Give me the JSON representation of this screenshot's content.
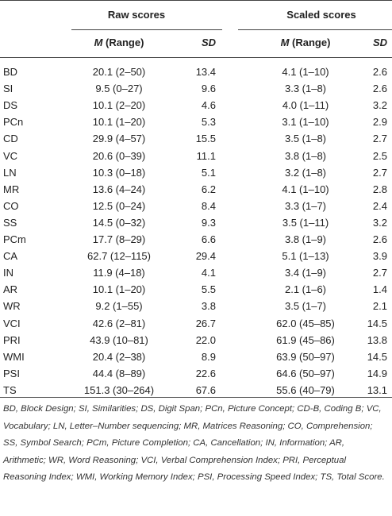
{
  "table": {
    "groups": [
      "Raw scores",
      "Scaled scores"
    ],
    "subheaders": [
      {
        "italic": "M",
        "text": " (Range)"
      },
      {
        "italic": "SD"
      },
      {
        "italic": "M",
        "text": " (Range)"
      },
      {
        "italic": "SD"
      }
    ],
    "rows": [
      [
        "BD",
        "20.1 (2–50)",
        "13.4",
        "4.1 (1–10)",
        "2.6"
      ],
      [
        "SI",
        "9.5 (0–27)",
        "9.6",
        "3.3 (1–8)",
        "2.6"
      ],
      [
        "DS",
        "10.1 (2–20)",
        "4.6",
        "4.0 (1–11)",
        "3.2"
      ],
      [
        "PCn",
        "10.1 (1–20)",
        "5.3",
        "3.1 (1–10)",
        "2.9"
      ],
      [
        "CD",
        "29.9 (4–57)",
        "15.5",
        "3.5 (1–8)",
        "2.7"
      ],
      [
        "VC",
        "20.6 (0–39)",
        "11.1",
        "3.8 (1–8)",
        "2.5"
      ],
      [
        "LN",
        "10.3 (0–18)",
        "5.1",
        "3.2 (1–8)",
        "2.7"
      ],
      [
        "MR",
        "13.6 (4–24)",
        "6.2",
        "4.1 (1–10)",
        "2.8"
      ],
      [
        "CO",
        "12.5 (0–24)",
        "8.4",
        "3.3 (1–7)",
        "2.4"
      ],
      [
        "SS",
        "14.5 (0–32)",
        "9.3",
        "3.5 (1–11)",
        "3.2"
      ],
      [
        "PCm",
        "17.7 (8–29)",
        "6.6",
        "3.8 (1–9)",
        "2.6"
      ],
      [
        "CA",
        "62.7 (12–115)",
        "29.4",
        "5.1 (1–13)",
        "3.9"
      ],
      [
        "IN",
        "11.9 (4–18)",
        "4.1",
        "3.4 (1–9)",
        "2.7"
      ],
      [
        "AR",
        "10.1 (1–20)",
        "5.5",
        "2.1 (1–6)",
        "1.4"
      ],
      [
        "WR",
        "9.2 (1–55)",
        "3.8",
        "3.5 (1–7)",
        "2.1"
      ],
      [
        "VCI",
        "42.6 (2–81)",
        "26.7",
        "62.0 (45–85)",
        "14.5"
      ],
      [
        "PRI",
        "43.9 (10–81)",
        "22.0",
        "61.9 (45–86)",
        "13.8"
      ],
      [
        "WMI",
        "20.4 (2–38)",
        "8.9",
        "63.9 (50–97)",
        "14.5"
      ],
      [
        "PSI",
        "44.4 (8–89)",
        "22.6",
        "64.6 (50–97)",
        "14.9"
      ],
      [
        "TS",
        "151.3 (30–264)",
        "67.6",
        "55.6 (40–79)",
        "13.1"
      ]
    ],
    "footnote": "BD, Block Design; SI, Similarities; DS, Digit Span; PCn, Picture Concept; CD-B, Coding B; VC, Vocabulary; LN, Letter–Number sequencing; MR, Matrices Reasoning; CO, Comprehension; SS, Symbol Search; PCm, Picture Completion; CA, Cancellation; IN, Information; AR, Arithmetic; WR, Word Reasoning; VCI, Verbal Comprehension Index; PRI, Perceptual Reasoning Index; WMI, Working Memory Index; PSI, Processing Speed Index; TS, Total Score."
  }
}
